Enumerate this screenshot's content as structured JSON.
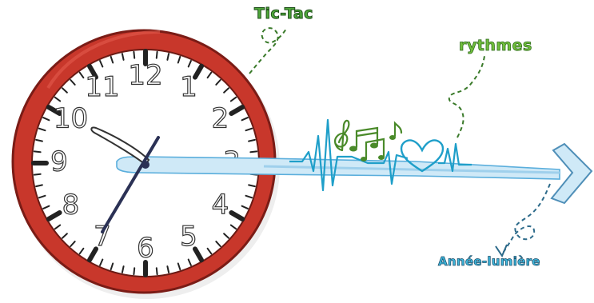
{
  "labels": {
    "tic_tac": "Tic-Tac",
    "rythmes": "rythmes",
    "annee_lumiere": "Année-lumière"
  },
  "clock": {
    "numerals": [
      "12",
      "1",
      "2",
      "3",
      "4",
      "5",
      "6",
      "7",
      "8",
      "9",
      "10",
      "11"
    ],
    "frame_color": "#c8372b",
    "face_color": "#ffffff"
  },
  "colors": {
    "arrow_fill": "#cfe9f7",
    "arrow_outline": "#5aaedc",
    "heartbeat": "#1f9fc9",
    "music_notes": "#4a8a2a",
    "tictac_green": "#4fa83a",
    "rythmes_green": "#72bf3c",
    "annee_blue": "#3db7dd"
  },
  "icons": {
    "music": "music-notes-icon",
    "heart": "heart-icon",
    "arrow": "arrow-icon"
  }
}
